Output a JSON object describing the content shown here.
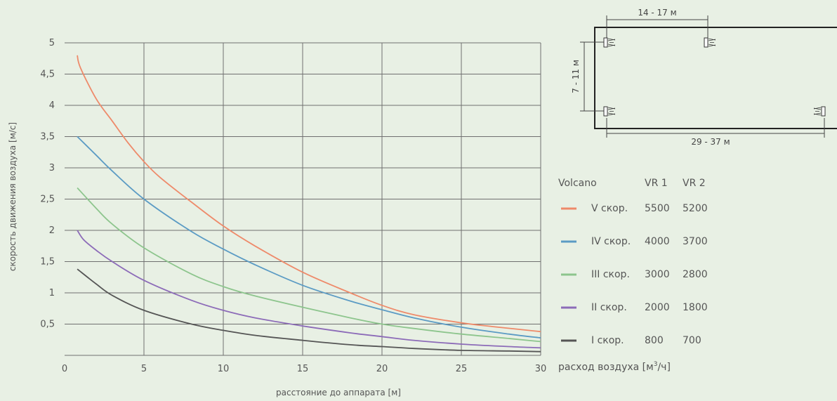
{
  "chart_data": {
    "type": "line",
    "xlabel": "расстояние до аппарата [м]",
    "ylabel": "скорость движения воздуха [м/с]",
    "xlim": [
      0,
      30
    ],
    "ylim": [
      0,
      5
    ],
    "x_ticks": [
      "0",
      "5",
      "10",
      "15",
      "20",
      "25",
      "30"
    ],
    "y_ticks": [
      "0,5",
      "1",
      "1,5",
      "2",
      "2,5",
      "3",
      "3,5",
      "4",
      "4,5",
      "5"
    ],
    "grid": true,
    "series": [
      {
        "name": "V скор.",
        "color": "#ee8a6a",
        "x": [
          0.8,
          1.0,
          2,
          3,
          4,
          5,
          6,
          8,
          10,
          12,
          15,
          18,
          20,
          22,
          25,
          27,
          30
        ],
        "y": [
          4.8,
          4.6,
          4.1,
          3.75,
          3.4,
          3.1,
          2.85,
          2.45,
          2.07,
          1.75,
          1.33,
          1.0,
          0.8,
          0.65,
          0.52,
          0.46,
          0.38
        ]
      },
      {
        "name": "IV скор.",
        "color": "#5b9bc4",
        "x": [
          0.8,
          2,
          3,
          5,
          8,
          10,
          12,
          15,
          18,
          20,
          22,
          25,
          28,
          30
        ],
        "y": [
          3.5,
          3.2,
          2.95,
          2.5,
          1.98,
          1.7,
          1.45,
          1.12,
          0.87,
          0.73,
          0.6,
          0.45,
          0.34,
          0.28
        ]
      },
      {
        "name": "III скор.",
        "color": "#8dc58d",
        "x": [
          0.8,
          2,
          3,
          5,
          8,
          10,
          12,
          15,
          18,
          20,
          22,
          25,
          28,
          30
        ],
        "y": [
          2.68,
          2.35,
          2.1,
          1.72,
          1.3,
          1.1,
          0.95,
          0.77,
          0.6,
          0.5,
          0.43,
          0.34,
          0.27,
          0.22
        ]
      },
      {
        "name": "II скор.",
        "color": "#8c6bb8",
        "x": [
          0.8,
          1.2,
          2,
          3,
          5,
          8,
          10,
          12,
          15,
          18,
          20,
          22,
          25,
          28,
          30
        ],
        "y": [
          2.0,
          1.85,
          1.68,
          1.5,
          1.2,
          0.88,
          0.72,
          0.6,
          0.47,
          0.36,
          0.3,
          0.24,
          0.18,
          0.14,
          0.12
        ]
      },
      {
        "name": "I скор.",
        "color": "#555555",
        "x": [
          0.8,
          2,
          3,
          5,
          8,
          10,
          12,
          15,
          18,
          20,
          22,
          25,
          28,
          30
        ],
        "y": [
          1.38,
          1.14,
          0.96,
          0.72,
          0.5,
          0.4,
          0.32,
          0.24,
          0.17,
          0.14,
          0.11,
          0.08,
          0.07,
          0.06
        ]
      }
    ]
  },
  "legend": {
    "header": "Volcano",
    "col1": "VR 1",
    "col2": "VR 2",
    "rows": [
      {
        "label": "V скор.",
        "vr1": "5500",
        "vr2": "5200"
      },
      {
        "label": "IV скор.",
        "vr1": "4000",
        "vr2": "3700"
      },
      {
        "label": "III скор.",
        "vr1": "3000",
        "vr2": "2800"
      },
      {
        "label": "II скор.",
        "vr1": "2000",
        "vr2": "1800"
      },
      {
        "label": "I скор.",
        "vr1": "800",
        "vr2": "700"
      }
    ],
    "footer_prefix": "расход воздуха [м",
    "footer_sup": "3",
    "footer_suffix": "/ч]"
  },
  "layout_diagram": {
    "top_dim": "14 - 17 м",
    "side_dim": "7 - 11 м",
    "bottom_dim": "29 - 37 м"
  }
}
